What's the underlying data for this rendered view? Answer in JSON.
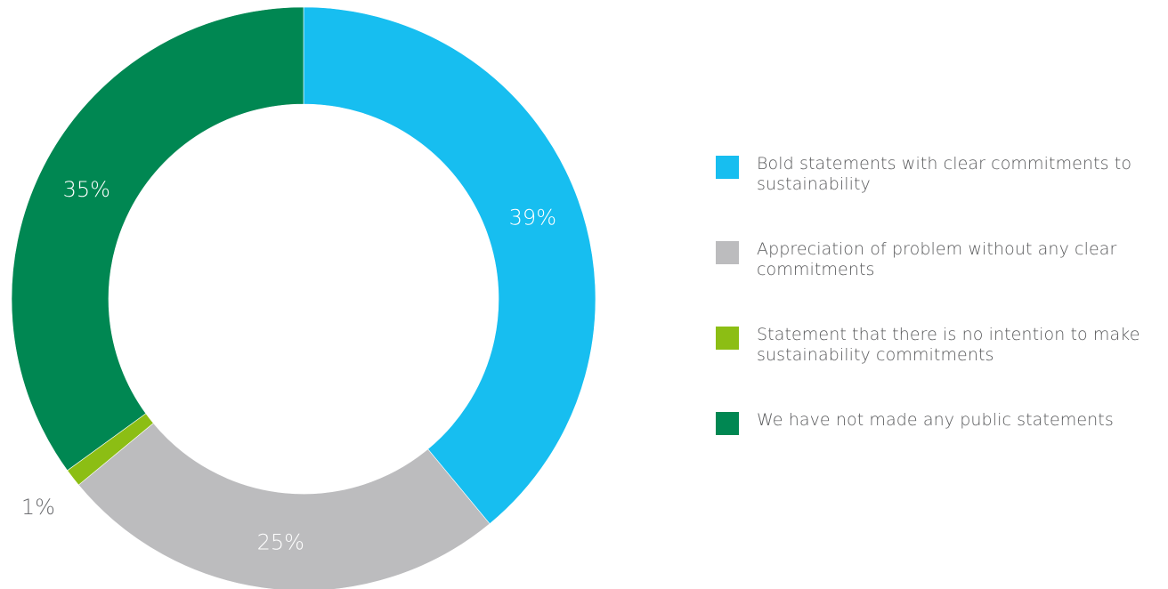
{
  "chart_data": {
    "type": "pie",
    "donut": true,
    "slices": [
      {
        "label": "Bold statements with clear commitments to sustainability",
        "value": 39,
        "display": "39%",
        "color": "#17bef0"
      },
      {
        "label": "Appreciation of problem without any clear commitments",
        "value": 25,
        "display": "25%",
        "color": "#bcbcbe"
      },
      {
        "label": "Statement that there is no intention to make sustainability commitments",
        "value": 1,
        "display": "1%",
        "color": "#8cbe14"
      },
      {
        "label": "We have not made any public statements",
        "value": 35,
        "display": "35%",
        "color": "#008752"
      }
    ],
    "legend_position": "right"
  }
}
